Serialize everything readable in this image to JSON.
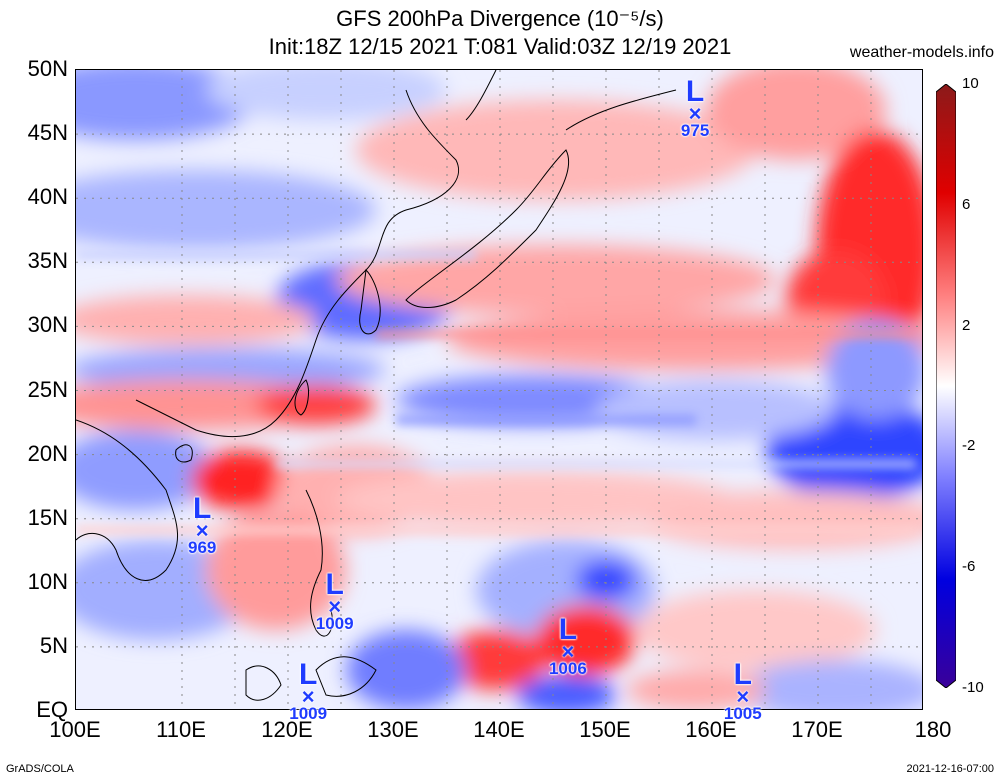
{
  "title_line1": "GFS 200hPa Divergence (10⁻⁵/s)",
  "title_line2": "Init:18Z 12/15 2021 T:081 Valid:03Z 12/19 2021",
  "site": "weather-models.info",
  "footer_left": "GrADS/COLA",
  "footer_right": "2021-12-16-07:00",
  "lat_labels": [
    "50N",
    "45N",
    "40N",
    "35N",
    "30N",
    "25N",
    "20N",
    "15N",
    "10N",
    "5N",
    "EQ"
  ],
  "lon_labels": [
    "100E",
    "110E",
    "120E",
    "130E",
    "140E",
    "150E",
    "160E",
    "170E",
    "180"
  ],
  "colorbar": {
    "labels": [
      "10",
      "6",
      "2",
      "-2",
      "-6",
      "-10"
    ],
    "colors": [
      "#8b1a1a",
      "#ff0000",
      "#ffb3b3",
      "#ffffff",
      "#b3b3ff",
      "#0000ff",
      "#3a0099"
    ]
  },
  "lows": [
    {
      "pressure": "975",
      "lon": 158.5,
      "lat": 46.5
    },
    {
      "pressure": "969",
      "lon": 112.0,
      "lat": 14.0
    },
    {
      "pressure": "1009",
      "lon": 124.5,
      "lat": 8.0
    },
    {
      "pressure": "1006",
      "lon": 146.5,
      "lat": 4.5
    },
    {
      "pressure": "1009",
      "lon": 122.0,
      "lat": 1.0
    },
    {
      "pressure": "1005",
      "lon": 163.0,
      "lat": 1.0
    }
  ],
  "L_letter": "L",
  "X_letter": "×"
}
